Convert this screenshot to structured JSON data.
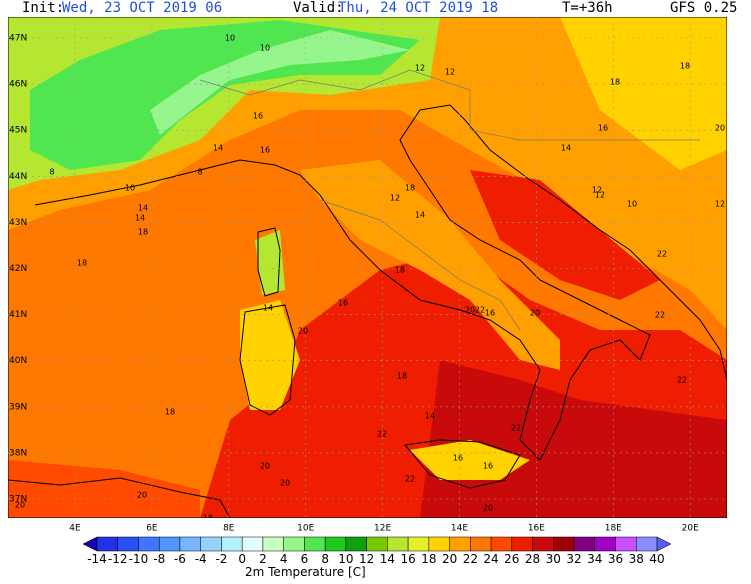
{
  "header": {
    "init_label": "Init:",
    "init_value": "Wed, 23 OCT 2019  06",
    "valid_label": "Valid:",
    "valid_value": "Thu, 24 OCT 2019  18",
    "step": "T=+36h",
    "model": "GFS 0.25"
  },
  "map": {
    "lat_labels": [
      "47N",
      "46N",
      "45N",
      "44N",
      "43N",
      "42N",
      "41N",
      "40N",
      "39N",
      "38N",
      "37N"
    ],
    "lon_labels": [
      "4E",
      "6E",
      "8E",
      "10E",
      "12E",
      "14E",
      "16E",
      "18E",
      "20E"
    ],
    "contour_labels": [
      10,
      10,
      12,
      12,
      10,
      8,
      8,
      14,
      16,
      16,
      12,
      14,
      18,
      18,
      20,
      16,
      14,
      12,
      10,
      14,
      18,
      18,
      14,
      18,
      16,
      14,
      20,
      16,
      20,
      22,
      20,
      18,
      22,
      14,
      22,
      22,
      18,
      22,
      20,
      20,
      16,
      16,
      22,
      20,
      20,
      20,
      18,
      18,
      22,
      12,
      12
    ]
  },
  "colorbar": {
    "title": "2m Temperature [C]",
    "levels": [
      -14,
      -12,
      -10,
      -8,
      -6,
      -4,
      -2,
      0,
      2,
      4,
      6,
      8,
      10,
      12,
      14,
      16,
      18,
      20,
      22,
      24,
      26,
      28,
      30,
      32,
      34,
      36,
      38,
      40
    ],
    "colors": [
      "#1400b4",
      "#1e32e6",
      "#2850f0",
      "#3c78ff",
      "#5096ff",
      "#78b4ff",
      "#96d2fa",
      "#b4f0fa",
      "#e1ffff",
      "#c8ffbe",
      "#96f58c",
      "#50e650",
      "#1ec81e",
      "#0ea00e",
      "#78c800",
      "#b4e632",
      "#e6f028",
      "#ffd200",
      "#ffa000",
      "#ff7800",
      "#ff4a00",
      "#f01e00",
      "#c80a0a",
      "#a00000",
      "#800080",
      "#a000c8",
      "#c850ff",
      "#8c8cff",
      "#5a5af0"
    ]
  }
}
